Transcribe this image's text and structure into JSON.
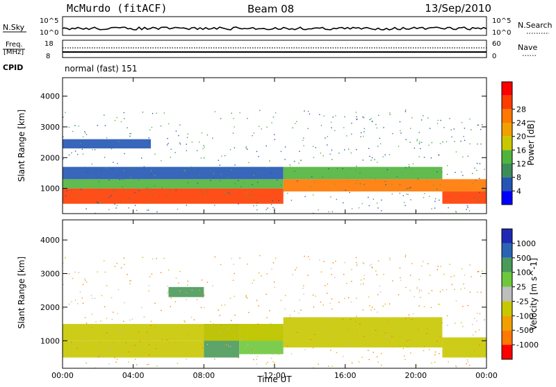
{
  "header": {
    "station": "McMurdo (fitACF)",
    "beam": "Beam 08",
    "date": "13/Sep/2010"
  },
  "strip": {
    "nsky_label": "N.Sky",
    "nsky_top": "10^5",
    "nsky_bottom": "10^0",
    "nsearch_label": "N.Search",
    "nsearch_top": "10^5",
    "nsearch_bottom": "10^0",
    "freq_label": "Freq.",
    "freq_unit": "[MHz]",
    "freq_top": "18",
    "freq_bottom": "8",
    "nave_label": "Nave",
    "nave_top": "60",
    "nave_bottom": "0",
    "cpid_label": "CPID",
    "cpid_value": "normal (fast) 151"
  },
  "colors": {
    "power_scale": [
      "#0000ff",
      "#2255b4",
      "#3c8c5a",
      "#50b43c",
      "#c8c800",
      "#f0a000",
      "#ff7800",
      "#ff3c00",
      "#ff0000"
    ],
    "velocity_scale": [
      "#1e2ab4",
      "#2a64b4",
      "#4a9a5a",
      "#6ec83c",
      "#bebebe",
      "#c8c800",
      "#f0a000",
      "#ff7800",
      "#ff0000"
    ]
  },
  "chart_data": [
    {
      "type": "heatmap",
      "name": "power",
      "xlabel": "",
      "ylabel": "Slant Range [km]",
      "xlim": [
        0,
        24
      ],
      "ylim": [
        180,
        4600
      ],
      "yticks": [
        1000,
        2000,
        3000,
        4000
      ],
      "colorbar": {
        "label": "Power [dB]",
        "ticks": [
          "4",
          "8",
          "12",
          "16",
          "20",
          "24",
          "28"
        ],
        "range": [
          0,
          32
        ]
      },
      "regions": [
        {
          "x0": 0,
          "x1": 12.5,
          "y0": 500,
          "y1": 1000,
          "value": 28
        },
        {
          "x0": 0,
          "x1": 12.5,
          "y0": 1000,
          "y1": 1300,
          "value": 14
        },
        {
          "x0": 0,
          "x1": 12.5,
          "y0": 1300,
          "y1": 1700,
          "value": 6
        },
        {
          "x0": 0,
          "x1": 5,
          "y0": 2300,
          "y1": 2600,
          "value": 5
        },
        {
          "x0": 12.5,
          "x1": 24,
          "y0": 900,
          "y1": 1300,
          "value": 24
        },
        {
          "x0": 12.5,
          "x1": 21.5,
          "y0": 1300,
          "y1": 1700,
          "value": 14
        },
        {
          "x0": 21.5,
          "x1": 24,
          "y0": 500,
          "y1": 900,
          "value": 28
        }
      ]
    },
    {
      "type": "heatmap",
      "name": "velocity",
      "xlabel": "Time UT",
      "ylabel": "Slant Range [km]",
      "xlim": [
        0,
        24
      ],
      "ylim": [
        180,
        4600
      ],
      "xticks": [
        "00:00",
        "04:00",
        "08:00",
        "12:00",
        "16:00",
        "20:00",
        "00:00"
      ],
      "yticks": [
        1000,
        2000,
        3000,
        4000
      ],
      "colorbar": {
        "label": "Velocity [m s^-1]",
        "ticks": [
          "1000",
          "500",
          "100",
          "25",
          "-25",
          "-100",
          "-500",
          "-1000"
        ]
      },
      "regions": [
        {
          "x0": 0,
          "x1": 8,
          "y0": 500,
          "y1": 1000,
          "value": -100
        },
        {
          "x0": 8,
          "x1": 10,
          "y0": 500,
          "y1": 1500,
          "value": 100
        },
        {
          "x0": 10,
          "x1": 12.5,
          "y0": 600,
          "y1": 1500,
          "value": 25
        },
        {
          "x0": 0,
          "x1": 12.5,
          "y0": 1000,
          "y1": 1500,
          "value": -100
        },
        {
          "x0": 12.5,
          "x1": 21.5,
          "y0": 800,
          "y1": 1700,
          "value": -100
        },
        {
          "x0": 21.5,
          "x1": 24,
          "y0": 500,
          "y1": 1100,
          "value": -100
        },
        {
          "x0": 6,
          "x1": 8,
          "y0": 2300,
          "y1": 2600,
          "value": 100
        }
      ]
    }
  ]
}
